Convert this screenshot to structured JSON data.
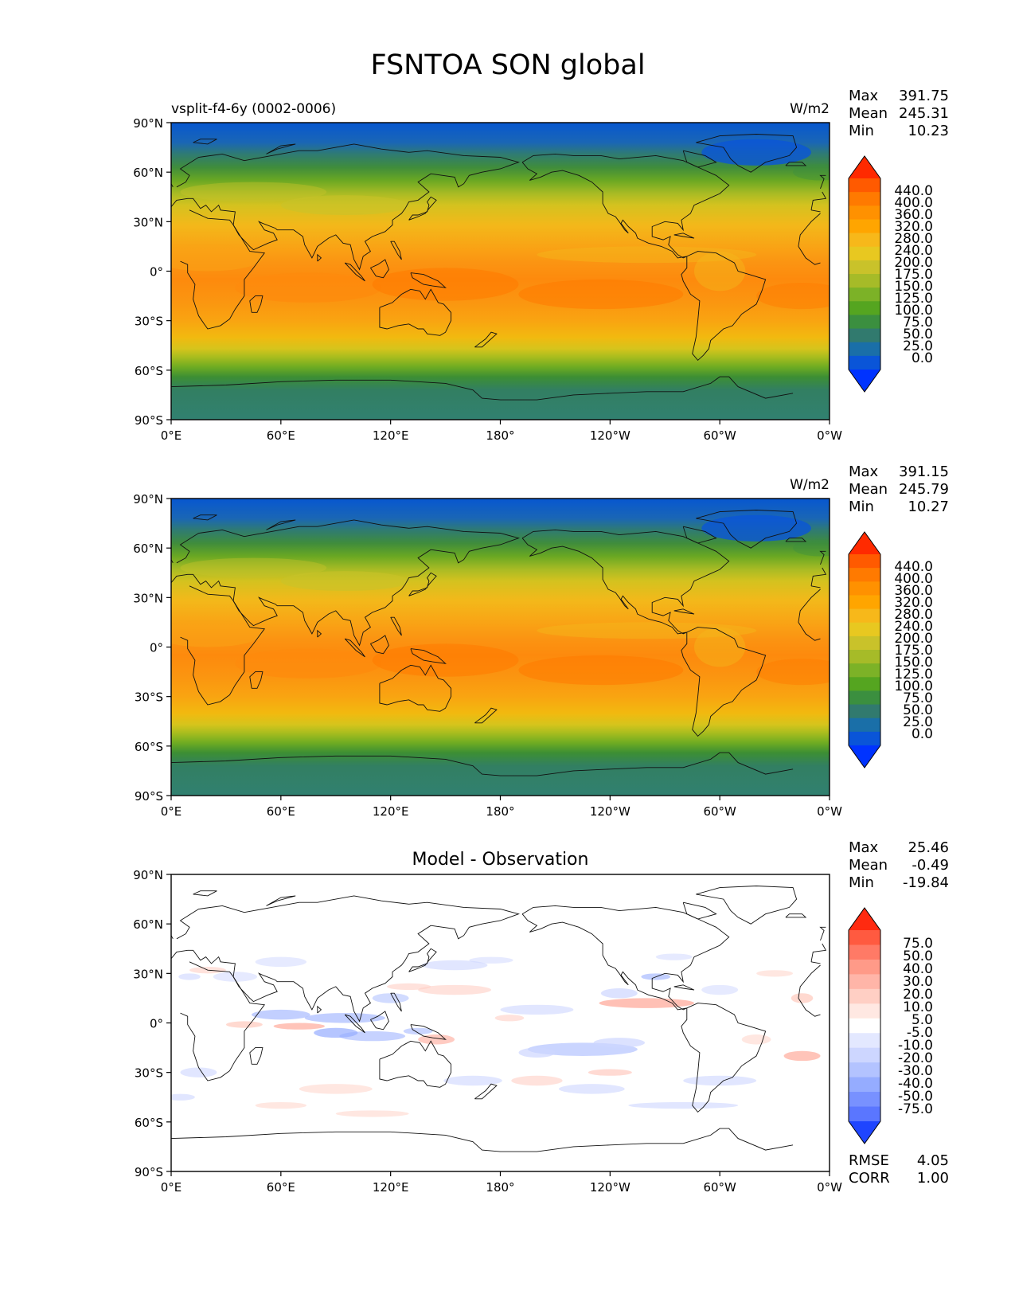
{
  "title": "FSNTOA SON global",
  "panels": [
    {
      "id": "model",
      "left_label": "vsplit-f4-6y (0002-0006)",
      "center_title": "",
      "units": "W/m2",
      "stats": [
        {
          "label": "Max",
          "value": "391.75"
        },
        {
          "label": "Mean",
          "value": "245.31"
        },
        {
          "label": "Min",
          "value": "10.23"
        }
      ],
      "colorbar": {
        "labels": [
          "440.0",
          "400.0",
          "360.0",
          "320.0",
          "280.0",
          "240.0",
          "200.0",
          "175.0",
          "150.0",
          "125.0",
          "100.0",
          "75.0",
          "50.0",
          "25.0",
          "0.0"
        ],
        "colors": [
          "#ff2a00",
          "#ff5a00",
          "#ff7a00",
          "#ff9100",
          "#ffa500",
          "#f7b81a",
          "#e8c820",
          "#c9c22a",
          "#a6bb28",
          "#7cb227",
          "#55a520",
          "#3b8f3f",
          "#317a6e",
          "#1a6fa8",
          "#0a55d8",
          "#0033ff"
        ]
      },
      "ramp": [
        [
          -90,
          "#318070"
        ],
        [
          -72,
          "#327f62"
        ],
        [
          -64,
          "#3d8f33"
        ],
        [
          -58,
          "#6fac22"
        ],
        [
          -52,
          "#a9bd1e"
        ],
        [
          -47,
          "#d6c41c"
        ],
        [
          -40,
          "#f2b90f"
        ],
        [
          -30,
          "#f9a411"
        ],
        [
          -18,
          "#fb9510"
        ],
        [
          -5,
          "#fd8a0d"
        ],
        [
          5,
          "#fb9412"
        ],
        [
          15,
          "#f9a415"
        ],
        [
          28,
          "#f3b81a"
        ],
        [
          40,
          "#d4c21f"
        ],
        [
          47,
          "#a9bb24"
        ],
        [
          55,
          "#6aa823"
        ],
        [
          63,
          "#3f8c3c"
        ],
        [
          71,
          "#2f7b73"
        ],
        [
          78,
          "#1a66b5"
        ],
        [
          90,
          "#0757d0"
        ]
      ]
    },
    {
      "id": "obs",
      "left_label": "",
      "center_title": "",
      "units": "W/m2",
      "stats": [
        {
          "label": "Max",
          "value": "391.15"
        },
        {
          "label": "Mean",
          "value": "245.79"
        },
        {
          "label": "Min",
          "value": "10.27"
        }
      ],
      "colorbar": {
        "labels": [
          "440.0",
          "400.0",
          "360.0",
          "320.0",
          "280.0",
          "240.0",
          "200.0",
          "175.0",
          "150.0",
          "125.0",
          "100.0",
          "75.0",
          "50.0",
          "25.0",
          "0.0"
        ],
        "colors": [
          "#ff2a00",
          "#ff5a00",
          "#ff7a00",
          "#ff9100",
          "#ffa500",
          "#f7b81a",
          "#e8c820",
          "#c9c22a",
          "#a6bb28",
          "#7cb227",
          "#55a520",
          "#3b8f3f",
          "#317a6e",
          "#1a6fa8",
          "#0a55d8",
          "#0033ff"
        ]
      },
      "ramp": [
        [
          -90,
          "#318070"
        ],
        [
          -72,
          "#327f62"
        ],
        [
          -64,
          "#3d8f33"
        ],
        [
          -58,
          "#6fac22"
        ],
        [
          -52,
          "#a9bd1e"
        ],
        [
          -47,
          "#d6c41c"
        ],
        [
          -40,
          "#f2b90f"
        ],
        [
          -30,
          "#f9a411"
        ],
        [
          -18,
          "#fb9510"
        ],
        [
          -5,
          "#fd8a0d"
        ],
        [
          5,
          "#fb9412"
        ],
        [
          15,
          "#f9a415"
        ],
        [
          28,
          "#f3b81a"
        ],
        [
          40,
          "#d4c21f"
        ],
        [
          47,
          "#a9bb24"
        ],
        [
          55,
          "#6aa823"
        ],
        [
          63,
          "#3f8c3c"
        ],
        [
          71,
          "#2f7b73"
        ],
        [
          78,
          "#1a66b5"
        ],
        [
          90,
          "#0757d0"
        ]
      ]
    },
    {
      "id": "diff",
      "left_label": "",
      "center_title": "Model - Observation",
      "units": "",
      "stats": [
        {
          "label": "Max",
          "value": "25.46"
        },
        {
          "label": "Mean",
          "value": "-0.49"
        },
        {
          "label": "Min",
          "value": "-19.84"
        }
      ],
      "colorbar": {
        "labels": [
          "75.0",
          "50.0",
          "40.0",
          "30.0",
          "20.0",
          "10.0",
          "5.0",
          "-5.0",
          "-10.0",
          "-20.0",
          "-30.0",
          "-40.0",
          "-50.0",
          "-75.0"
        ],
        "colors": [
          "#ff2a10",
          "#ff5a40",
          "#ff7a66",
          "#ff9a88",
          "#ffb5a8",
          "#ffcfc4",
          "#ffe8e2",
          "#ffffff",
          "#e3e8ff",
          "#cdd6ff",
          "#b3c3ff",
          "#95acff",
          "#7891ff",
          "#5a76ff",
          "#1f45ff"
        ]
      },
      "bottom_stats": [
        {
          "label": "RMSE",
          "value": "4.05"
        },
        {
          "label": "CORR",
          "value": "1.00"
        }
      ]
    }
  ],
  "axes": {
    "lat_ticks": [
      "90°N",
      "60°N",
      "30°N",
      "0°",
      "30°S",
      "60°S",
      "90°S"
    ],
    "lon_ticks": [
      "0°E",
      "60°E",
      "120°E",
      "180°",
      "120°W",
      "60°W",
      "0°W"
    ]
  }
}
